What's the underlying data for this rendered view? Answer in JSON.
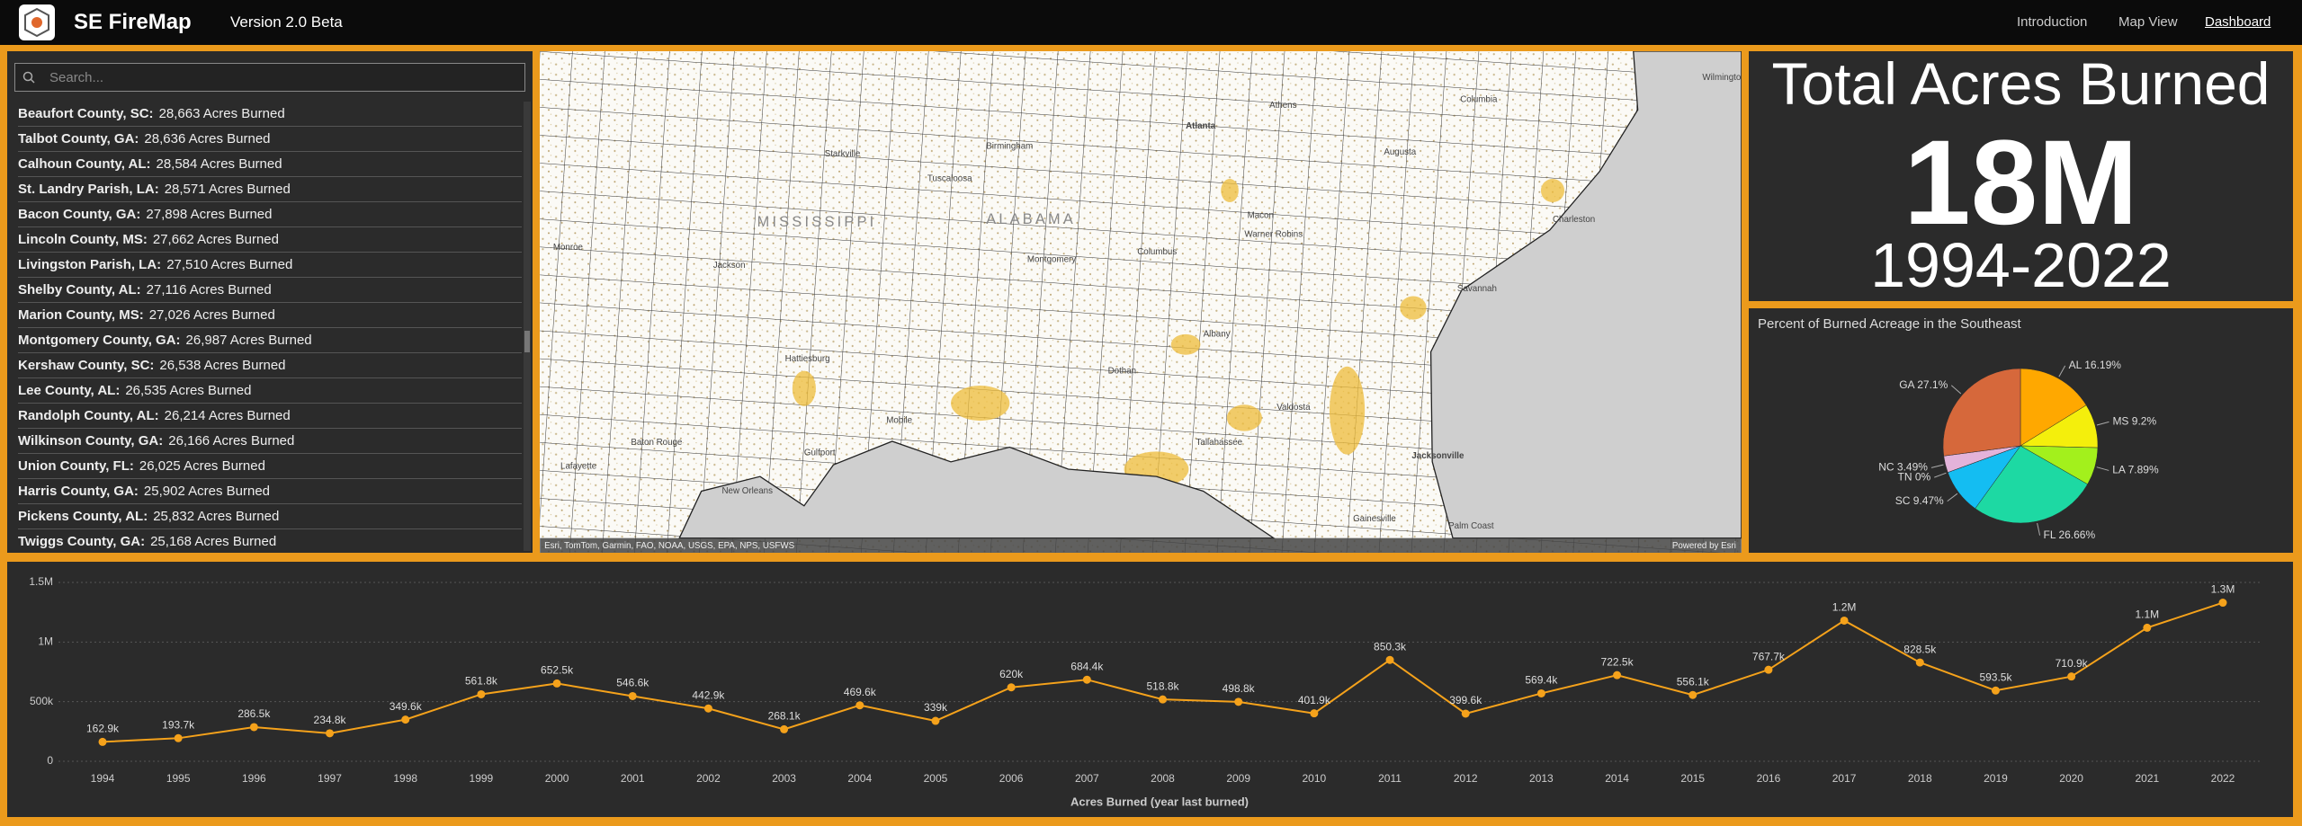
{
  "header": {
    "app": "SE FireMap",
    "version": "Version 2.0 Beta",
    "nav": [
      "Introduction",
      "Map View",
      "Dashboard"
    ]
  },
  "search": {
    "placeholder": "Search..."
  },
  "list": {
    "items": [
      {
        "county": "Beaufort County, SC:",
        "acres": "28,663 Acres Burned"
      },
      {
        "county": "Talbot County, GA:",
        "acres": "28,636 Acres Burned"
      },
      {
        "county": "Calhoun County, AL:",
        "acres": "28,584 Acres Burned"
      },
      {
        "county": "St. Landry Parish, LA:",
        "acres": "28,571 Acres Burned"
      },
      {
        "county": "Bacon County, GA:",
        "acres": "27,898 Acres Burned"
      },
      {
        "county": "Lincoln County, MS:",
        "acres": "27,662 Acres Burned"
      },
      {
        "county": "Livingston Parish, LA:",
        "acres": "27,510 Acres Burned"
      },
      {
        "county": "Shelby County, AL:",
        "acres": "27,116 Acres Burned"
      },
      {
        "county": "Marion County, MS:",
        "acres": "27,026 Acres Burned"
      },
      {
        "county": "Montgomery County, GA:",
        "acres": "26,987 Acres Burned"
      },
      {
        "county": "Kershaw County, SC:",
        "acres": "26,538 Acres Burned"
      },
      {
        "county": "Lee County, AL:",
        "acres": "26,535 Acres Burned"
      },
      {
        "county": "Randolph County, AL:",
        "acres": "26,214 Acres Burned"
      },
      {
        "county": "Wilkinson County, GA:",
        "acres": "26,166 Acres Burned"
      },
      {
        "county": "Union County, FL:",
        "acres": "26,025 Acres Burned"
      },
      {
        "county": "Harris County, GA:",
        "acres": "25,902 Acres Burned"
      },
      {
        "county": "Pickens County, AL:",
        "acres": "25,832 Acres Burned"
      },
      {
        "county": "Twiggs County, GA:",
        "acres": "25,168 Acres Burned"
      }
    ]
  },
  "map": {
    "labels": [
      "Starkville",
      "Tuscaloosa",
      "Birmingham",
      "Atlanta",
      "Athens",
      "Augusta",
      "Columbia",
      "Wilmington",
      "Charleston",
      "Savannah",
      "Macon",
      "Warner Robins",
      "Columbus",
      "Montgomery",
      "Albany",
      "Dothan",
      "Valdosta",
      "Tallahassee",
      "Jacksonville",
      "Gainesville",
      "Palm Coast",
      "Mobile",
      "Gulfport",
      "Hattiesburg",
      "Jackson",
      "Monroe",
      "Baton Rouge",
      "Lafayette",
      "New Orleans",
      "MISSISSIPPI",
      "ALABAMA"
    ],
    "attribution": "Esri, TomTom, Garmin, FAO, NOAA, USGS, EPA, NPS, USFWS",
    "powered": "Powered by Esri"
  },
  "kpi": {
    "title": "Total Acres Burned",
    "value": "18M",
    "period": "1994-2022"
  },
  "chart_data": [
    {
      "type": "pie",
      "title": "Percent of Burned Acreage in the Southeast",
      "categories": [
        "AL",
        "MS",
        "LA",
        "FL",
        "SC",
        "TN",
        "NC",
        "GA"
      ],
      "values": [
        16.19,
        9.2,
        7.89,
        26.66,
        9.47,
        0,
        3.49,
        27.1
      ],
      "value_labels": [
        "AL 16.19%",
        "MS 9.2%",
        "LA 7.89%",
        "FL 26.66%",
        "SC 9.47%",
        "TN 0%",
        "NC 3.49%",
        "GA 27.1%"
      ],
      "colors": [
        "#ffa800",
        "#f4ef0c",
        "#a3f01c",
        "#1dd9a3",
        "#14bdf2",
        "#9b7ae0",
        "#e3b3da",
        "#d6683b"
      ]
    },
    {
      "type": "line",
      "xlabel": "Acres Burned (year last burned)",
      "categories": [
        "1994",
        "1995",
        "1996",
        "1997",
        "1998",
        "1999",
        "2000",
        "2001",
        "2002",
        "2003",
        "2004",
        "2005",
        "2006",
        "2007",
        "2008",
        "2009",
        "2010",
        "2011",
        "2012",
        "2013",
        "2014",
        "2015",
        "2016",
        "2017",
        "2018",
        "2019",
        "2020",
        "2021",
        "2022"
      ],
      "values": [
        162900,
        193700,
        286500,
        234800,
        349600,
        561800,
        652500,
        546600,
        442900,
        268100,
        469600,
        339000,
        620000,
        684400,
        518800,
        498800,
        401900,
        850300,
        399600,
        569400,
        722500,
        556100,
        767700,
        1180000,
        828500,
        593500,
        710900,
        1120000,
        1330000
      ],
      "value_labels": [
        "162.9k",
        "193.7k",
        "286.5k",
        "234.8k",
        "349.6k",
        "561.8k",
        "652.5k",
        "546.6k",
        "442.9k",
        "268.1k",
        "469.6k",
        "339k",
        "620k",
        "684.4k",
        "518.8k",
        "498.8k",
        "401.9k",
        "850.3k",
        "399.6k",
        "569.4k",
        "722.5k",
        "556.1k",
        "767.7k",
        "1.2M",
        "828.5k",
        "593.5k",
        "710.9k",
        "1.1M",
        "1.3M"
      ],
      "ylim": [
        0,
        1500000
      ],
      "yticks": [
        0,
        {
          "value": 500000,
          "label": "500k"
        },
        {
          "value": 1000000,
          "label": "1M"
        },
        {
          "value": 1500000,
          "label": "1.5M"
        }
      ],
      "color": "#f5a21b",
      "grid": true
    }
  ]
}
